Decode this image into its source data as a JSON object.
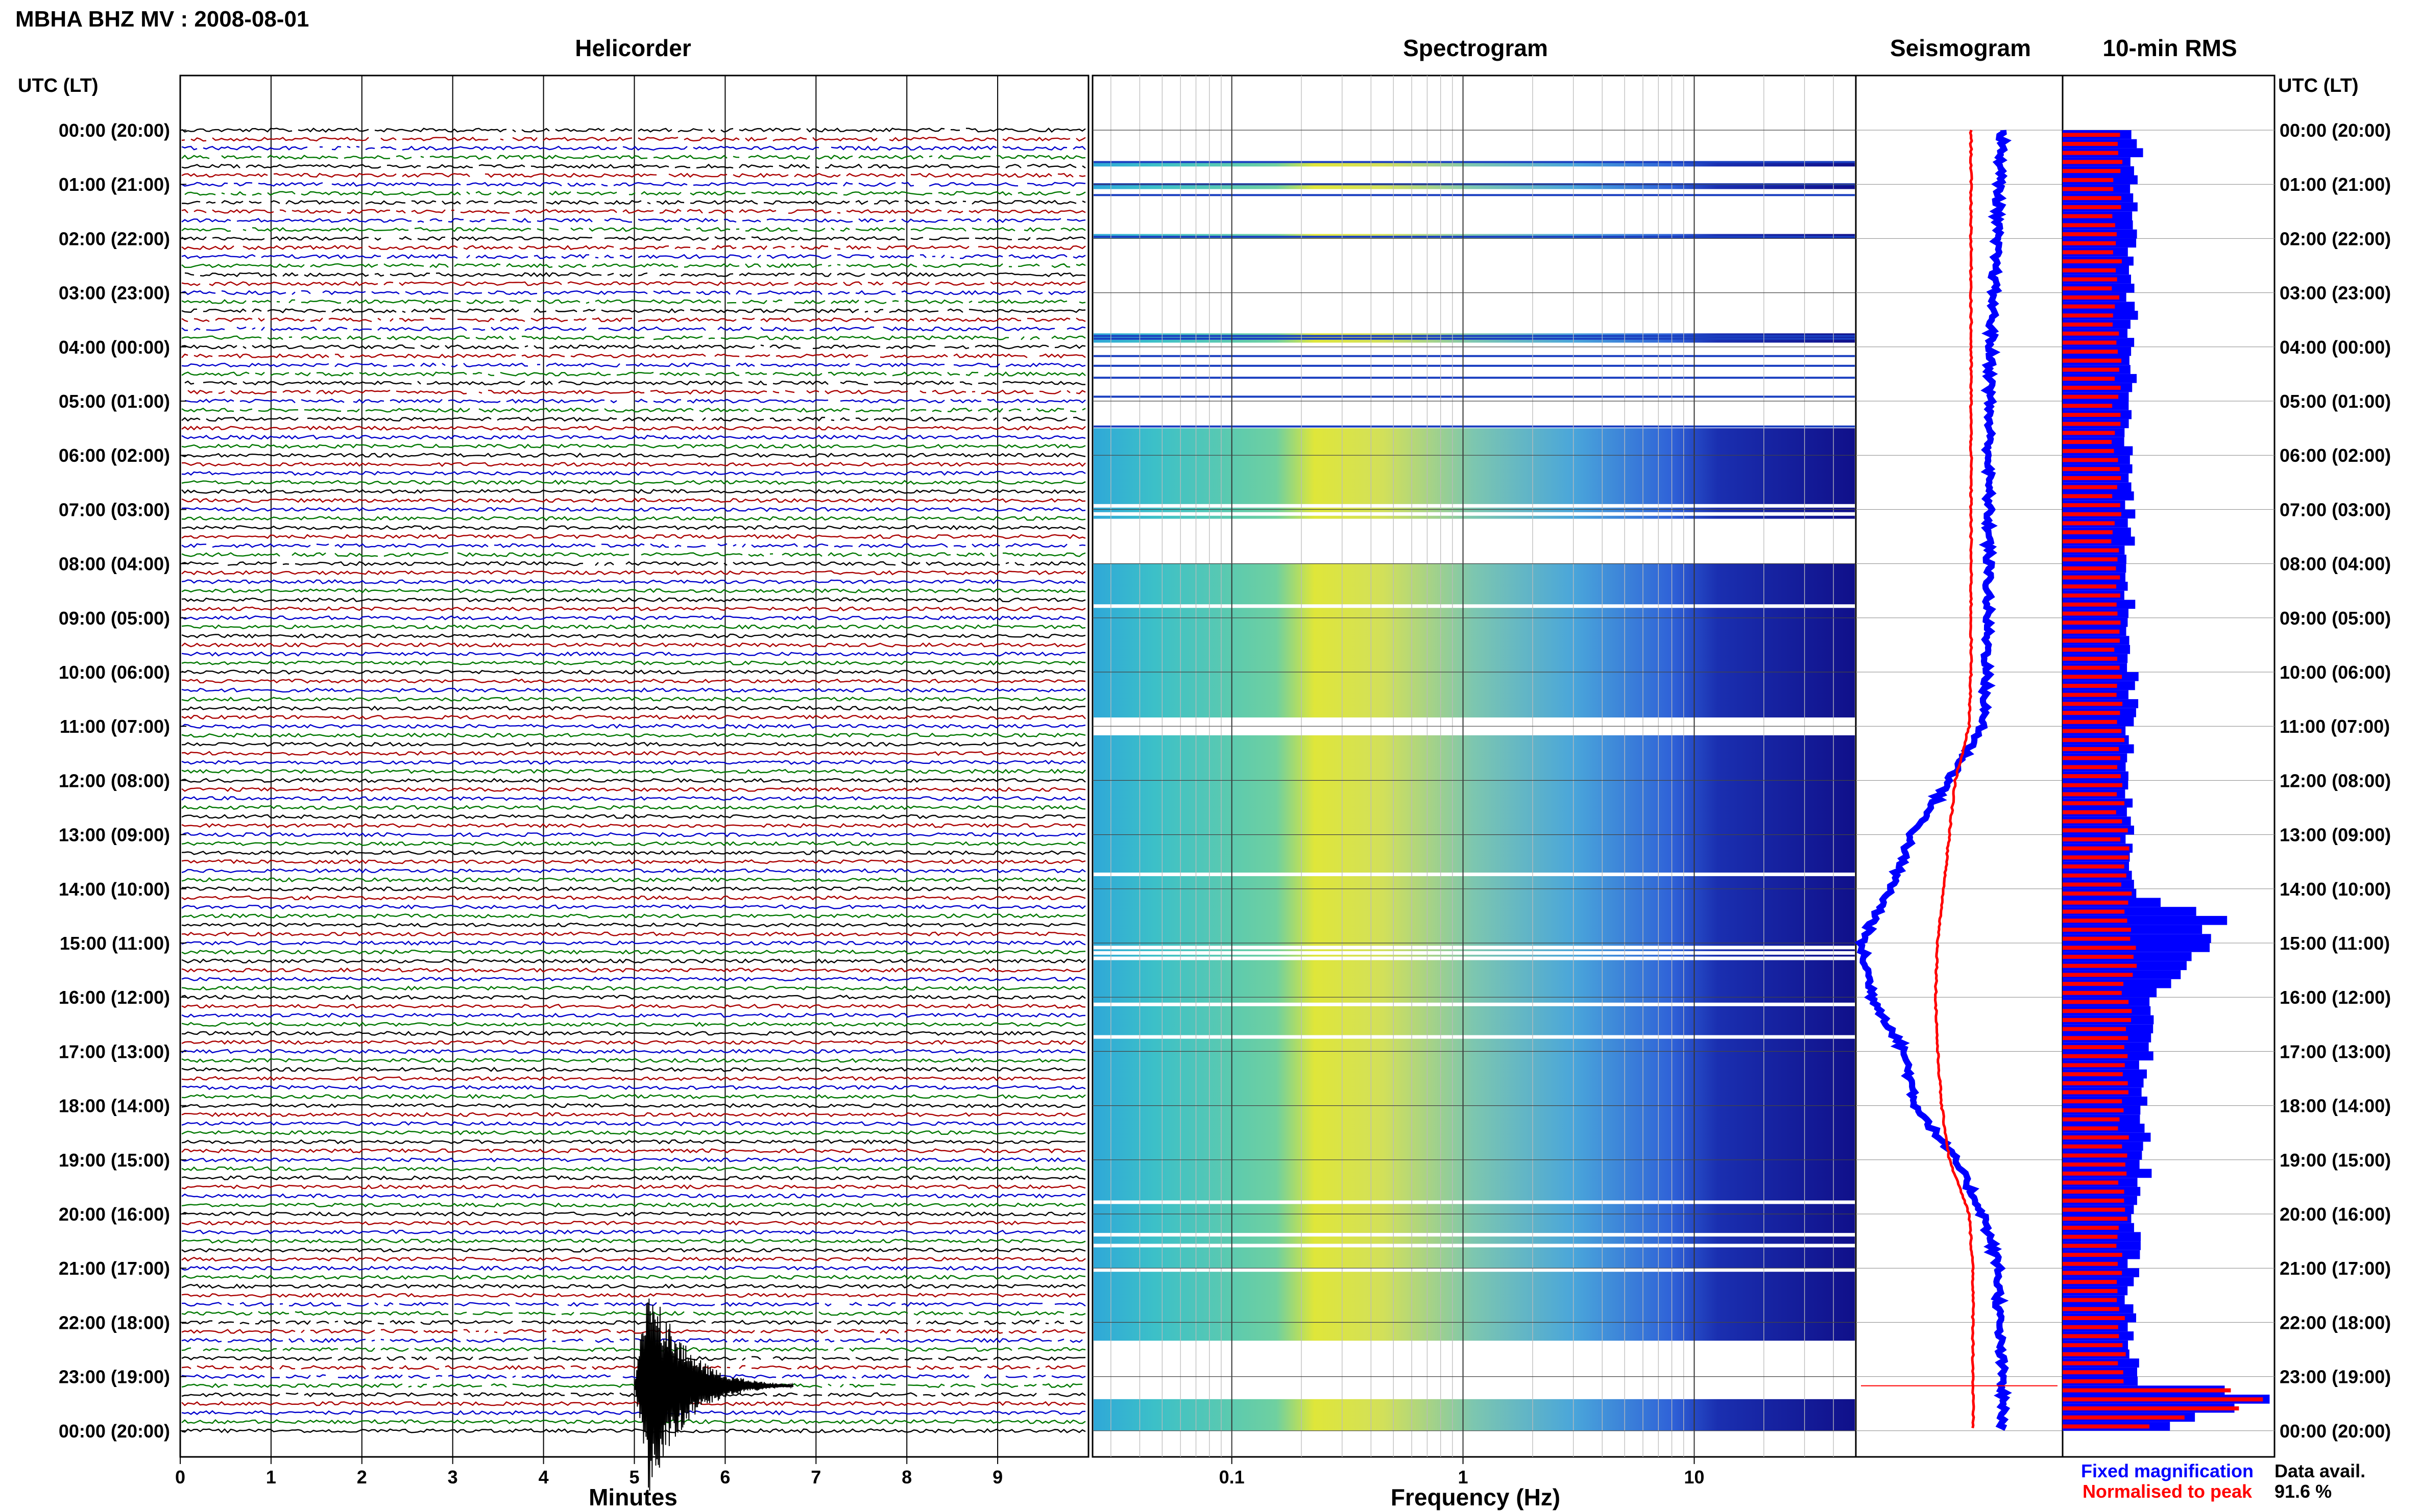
{
  "header": {
    "station_title": "MBHA BHZ MV : 2008-08-01",
    "utc_label_left": "UTC (LT)",
    "utc_label_right": "UTC (LT)"
  },
  "panels": {
    "helicorder_title": "Helicorder",
    "spectrogram_title": "Spectrogram",
    "seismogram_title": "Seismogram",
    "rms_title": "10-min RMS"
  },
  "axes": {
    "minutes_label": "Minutes",
    "frequency_label": "Frequency (Hz)"
  },
  "legend": {
    "fixed": "Fixed magnification",
    "normalised": "Normalised to peak",
    "fixed_color": "#0000ff",
    "normalised_color": "#ff0000"
  },
  "data_avail": {
    "label": "Data avail.",
    "value": "91.6 %"
  },
  "colors": {
    "trace_cycle": [
      "#000000",
      "#aa0000",
      "#0000cc",
      "#007700"
    ],
    "spectrogram_low": "#10108a",
    "spectrogram_high": "#e8e020",
    "rms_fixed": "#0000ff",
    "rms_normalised": "#ff0000"
  },
  "chart_data": [
    {
      "type": "line",
      "title": "Helicorder",
      "xlabel": "Minutes",
      "ylabel": "UTC (LT)",
      "x_ticks": [
        "0",
        "1",
        "2",
        "3",
        "4",
        "5",
        "6",
        "7",
        "8",
        "9"
      ],
      "xlim": [
        0,
        10
      ],
      "y_ticks": [
        "00:00 (20:00)",
        "01:00 (21:00)",
        "02:00 (22:00)",
        "03:00 (23:00)",
        "04:00 (00:00)",
        "05:00 (01:00)",
        "06:00 (02:00)",
        "07:00 (03:00)",
        "08:00 (04:00)",
        "09:00 (05:00)",
        "10:00 (06:00)",
        "11:00 (07:00)",
        "12:00 (08:00)",
        "13:00 (09:00)",
        "14:00 (10:00)",
        "15:00 (11:00)",
        "16:00 (12:00)",
        "17:00 (13:00)",
        "18:00 (14:00)",
        "19:00 (15:00)",
        "20:00 (16:00)",
        "21:00 (17:00)",
        "22:00 (18:00)",
        "23:00 (19:00)",
        "00:00 (20:00)"
      ],
      "lines_per_hour": 6,
      "event_time_utc_hour": 23.17,
      "event_minute": 5.1
    },
    {
      "type": "heatmap",
      "title": "Spectrogram",
      "xlabel": "Frequency (Hz)",
      "x_scale": "log",
      "x_ticks": [
        "0.1",
        "1",
        "10"
      ],
      "xlim": [
        0.025,
        50
      ],
      "gap_hours": [
        [
          0.0,
          0.55
        ],
        [
          0.65,
          0.95
        ],
        [
          1.05,
          1.9
        ],
        [
          2.0,
          3.75
        ],
        [
          3.9,
          5.5
        ],
        [
          7.15,
          7.95
        ],
        [
          10.8,
          11.15
        ],
        [
          22.3,
          23.4
        ]
      ]
    },
    {
      "type": "line",
      "title": "Seismogram",
      "series": [
        {
          "name": "Fixed magnification",
          "hours": [
            0,
            2,
            4,
            6,
            8,
            10,
            11,
            12,
            13,
            14,
            15,
            16,
            17,
            18,
            19,
            20,
            21,
            22,
            23,
            24
          ],
          "values": [
            0.72,
            0.69,
            0.66,
            0.65,
            0.65,
            0.64,
            0.62,
            0.45,
            0.26,
            0.15,
            0.0,
            0.06,
            0.22,
            0.28,
            0.48,
            0.62,
            0.7,
            0.7,
            0.72,
            0.72
          ]
        },
        {
          "name": "Normalised to peak",
          "hours": [
            0,
            2,
            4,
            6,
            8,
            10,
            11,
            12,
            13,
            14,
            15,
            16,
            17,
            18,
            19,
            20,
            21,
            22,
            23,
            24
          ],
          "values": [
            0.56,
            0.56,
            0.56,
            0.56,
            0.56,
            0.56,
            0.55,
            0.48,
            0.45,
            0.42,
            0.39,
            0.38,
            0.39,
            0.41,
            0.45,
            0.55,
            0.57,
            0.57,
            0.57,
            0.57
          ]
        }
      ]
    },
    {
      "type": "bar",
      "title": "10-min RMS",
      "series": [
        {
          "name": "Fixed magnification",
          "hours": [
            0,
            2,
            4,
            6,
            8,
            10,
            12,
            13,
            14,
            14.5,
            15,
            16,
            17,
            18,
            19,
            20,
            21,
            22,
            23,
            23.25,
            24
          ],
          "values": [
            0.35,
            0.33,
            0.32,
            0.32,
            0.31,
            0.33,
            0.32,
            0.32,
            0.36,
            0.72,
            0.68,
            0.45,
            0.4,
            0.36,
            0.4,
            0.34,
            0.33,
            0.32,
            0.34,
            1.0,
            0.32
          ]
        },
        {
          "name": "Normalised to peak",
          "hours": [
            0,
            6,
            12,
            14,
            15,
            16,
            20,
            23,
            23.25,
            24
          ],
          "values": [
            0.26,
            0.25,
            0.27,
            0.31,
            0.35,
            0.3,
            0.28,
            0.27,
            1.0,
            0.27
          ]
        }
      ]
    }
  ]
}
